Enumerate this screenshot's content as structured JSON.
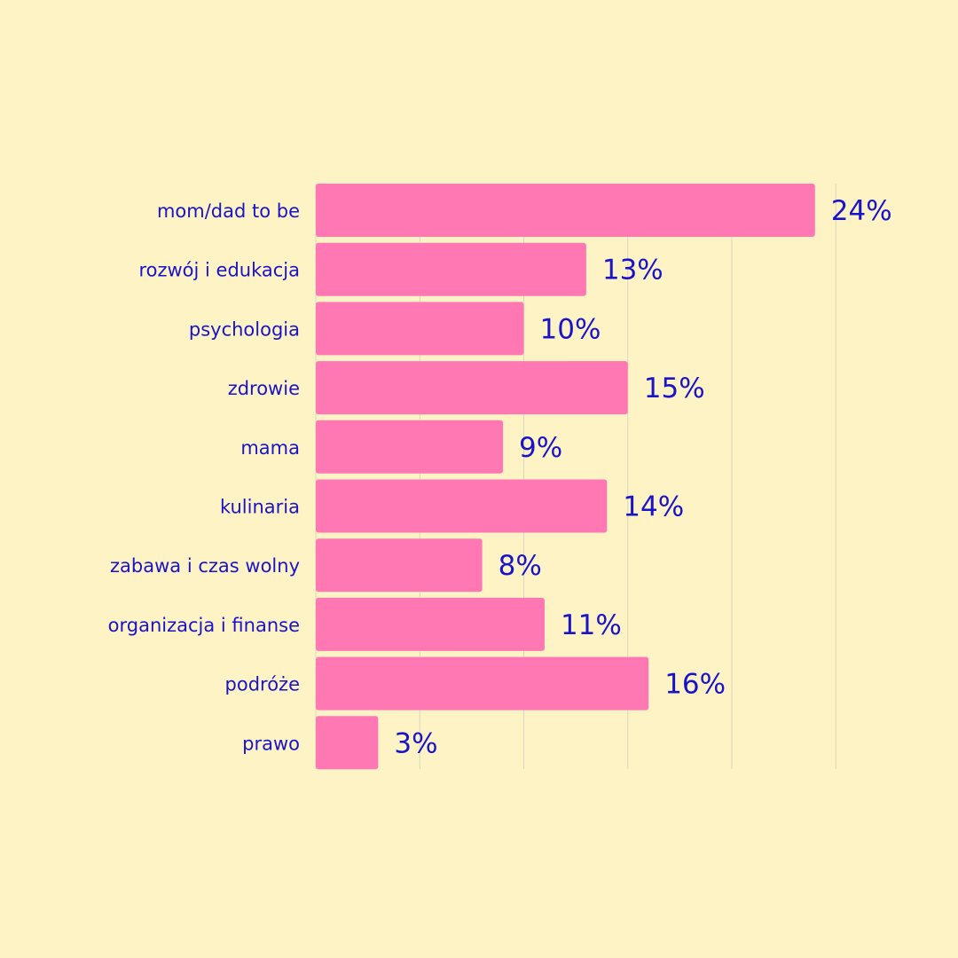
{
  "colors": {
    "background": "#fef3c4",
    "bar": "#ff78b4",
    "text": "#1a14c8",
    "grid": "#dcd6c0"
  },
  "chart_data": {
    "type": "bar",
    "orientation": "horizontal",
    "categories": [
      "mom/dad to be",
      "rozwój i edukacja",
      "psychologia",
      "zdrowie",
      "mama",
      "kulinaria",
      "zabawa i czas wolny",
      "organizacja i finanse",
      "podróże",
      "prawo"
    ],
    "values": [
      24,
      13,
      10,
      15,
      9,
      14,
      8,
      11,
      16,
      3
    ],
    "value_suffix": "%",
    "xlim": [
      0,
      25
    ],
    "grid": true,
    "data_labels": true,
    "legend": false
  }
}
